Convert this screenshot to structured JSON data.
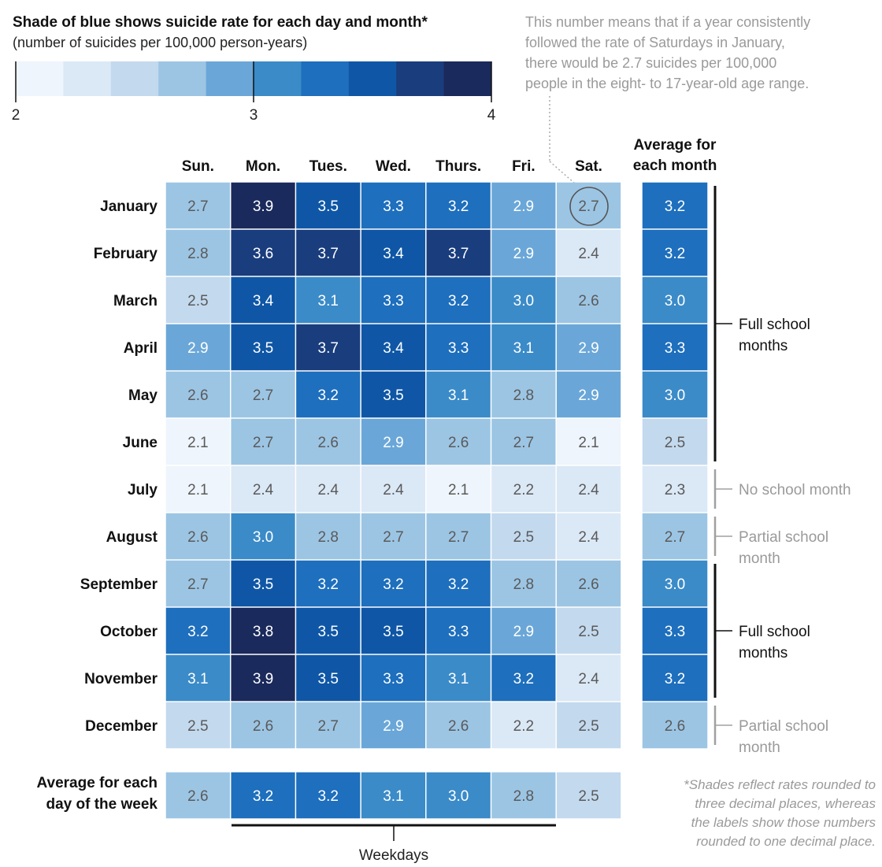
{
  "legend": {
    "title": "Shade of blue shows suicide rate for each day and month*",
    "subtitle": "(number of suicides per 100,000 person-years)",
    "tick_labels": [
      "2",
      "3",
      "4"
    ],
    "colors": [
      "#eef5fc",
      "#dbe8f6",
      "#c3d9ee",
      "#9cc5e4",
      "#6aa7d8",
      "#3b8bc8",
      "#1e6fbd",
      "#0f57a6",
      "#1a3d7d",
      "#1b2a5c"
    ]
  },
  "annotation": {
    "lines": [
      "This number means that if a year consistently",
      "followed the rate of Saturdays in January,",
      "there would be 2.7 suicides per 100,000",
      "people in the eight- to 17-year-old age range."
    ]
  },
  "footnote": {
    "lines": [
      "*Shades reflect rates rounded to",
      "three decimal places, whereas",
      "the labels show those numbers",
      "rounded to one decimal place."
    ]
  },
  "avg_month_header": [
    "Average for",
    "each month"
  ],
  "avg_day_label": [
    "Average for each",
    "day of the week"
  ],
  "weekdays_label": "Weekdays",
  "brackets": [
    {
      "lines": [
        "Full school",
        "months"
      ],
      "kind": "full"
    },
    {
      "lines": [
        "No school month"
      ],
      "kind": "partial"
    },
    {
      "lines": [
        "Partial school",
        "month"
      ],
      "kind": "partial"
    },
    {
      "lines": [
        "Full school",
        "months"
      ],
      "kind": "full"
    },
    {
      "lines": [
        "Partial school",
        "month"
      ],
      "kind": "partial"
    }
  ],
  "chart_data": {
    "type": "heatmap",
    "title": "Shade of blue shows suicide rate for each day and month*",
    "subtitle": "(number of suicides per 100,000 person-years)",
    "color_scale": [
      2,
      4
    ],
    "columns": [
      "Sun.",
      "Mon.",
      "Tues.",
      "Wed.",
      "Thurs.",
      "Fri.",
      "Sat."
    ],
    "rows": [
      "January",
      "February",
      "March",
      "April",
      "May",
      "June",
      "July",
      "August",
      "September",
      "October",
      "November",
      "December"
    ],
    "values": [
      [
        2.7,
        3.9,
        3.5,
        3.3,
        3.2,
        2.9,
        2.7
      ],
      [
        2.8,
        3.6,
        3.7,
        3.4,
        3.7,
        2.9,
        2.4
      ],
      [
        2.5,
        3.4,
        3.1,
        3.3,
        3.2,
        3.0,
        2.6
      ],
      [
        2.9,
        3.5,
        3.7,
        3.4,
        3.3,
        3.1,
        2.9
      ],
      [
        2.6,
        2.7,
        3.2,
        3.5,
        3.1,
        2.8,
        2.9
      ],
      [
        2.1,
        2.7,
        2.6,
        2.9,
        2.6,
        2.7,
        2.1
      ],
      [
        2.1,
        2.4,
        2.4,
        2.4,
        2.1,
        2.2,
        2.4
      ],
      [
        2.6,
        3.0,
        2.8,
        2.7,
        2.7,
        2.5,
        2.4
      ],
      [
        2.7,
        3.5,
        3.2,
        3.2,
        3.2,
        2.8,
        2.6
      ],
      [
        3.2,
        3.8,
        3.5,
        3.5,
        3.3,
        2.9,
        2.5
      ],
      [
        3.1,
        3.9,
        3.5,
        3.3,
        3.1,
        3.2,
        2.4
      ],
      [
        2.5,
        2.6,
        2.7,
        2.9,
        2.6,
        2.2,
        2.5
      ]
    ],
    "month_averages": [
      3.2,
      3.2,
      3.0,
      3.3,
      3.0,
      2.5,
      2.3,
      2.7,
      3.0,
      3.3,
      3.2,
      2.6
    ],
    "day_averages": [
      2.6,
      3.2,
      3.2,
      3.1,
      3.0,
      2.8,
      2.5
    ],
    "highlighted_cell": {
      "row": "January",
      "column": "Sat.",
      "value": 2.7
    }
  }
}
